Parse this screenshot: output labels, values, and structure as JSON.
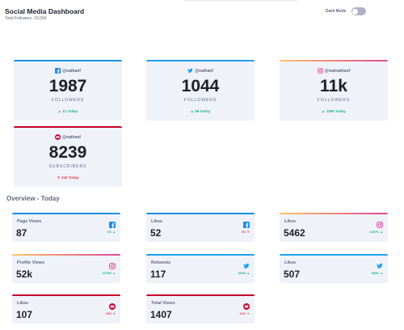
{
  "header": {
    "title": "Social Media Dashboard",
    "total_followers": "Total Followers: 23,004",
    "dark_mode_label": "Dark Mode"
  },
  "colors": {
    "facebook": "#178fe4",
    "twitter": "#1ca0f2",
    "instagram_start": "#fdc468",
    "instagram_end": "#df4996",
    "youtube": "#c4032b",
    "up": "#1eb589",
    "down": "#dc414c",
    "card_bg": "#f0f2fa"
  },
  "cards": [
    {
      "network": "facebook",
      "icon": "facebook-icon",
      "handle": "@nathanf",
      "count": "1987",
      "unit": "FOLLOWERS",
      "delta": "▲ 12 Today",
      "trend": "up"
    },
    {
      "network": "twitter",
      "icon": "twitter-icon",
      "handle": "@nathanf",
      "count": "1044",
      "unit": "FOLLOWERS",
      "delta": "▲ 99 Today",
      "trend": "up"
    },
    {
      "network": "instagram",
      "icon": "instagram-icon",
      "handle": "@realnathanf",
      "count": "11k",
      "unit": "FOLLOWERS",
      "delta": "▲ 1099 Today",
      "trend": "up"
    },
    {
      "network": "youtube",
      "icon": "youtube-icon",
      "handle": "@nathanf",
      "count": "8239",
      "unit": "SUBSCRIBERS",
      "delta": "▼ 144 Today",
      "trend": "down"
    }
  ],
  "overview": {
    "title": "Overview - Today",
    "items": [
      {
        "label": "Page Views",
        "value": "87",
        "pct": "3% ▲",
        "trend": "up",
        "network": "facebook",
        "icon": "facebook-icon"
      },
      {
        "label": "Likes",
        "value": "52",
        "pct": "2% ▼",
        "trend": "down",
        "network": "facebook",
        "icon": "facebook-icon"
      },
      {
        "label": "Likes",
        "value": "5462",
        "pct": "2257% ▲",
        "trend": "up",
        "network": "instagram",
        "icon": "instagram-icon"
      },
      {
        "label": "Profile Views",
        "value": "52k",
        "pct": "1375% ▲",
        "trend": "up",
        "network": "instagram",
        "icon": "instagram-icon"
      },
      {
        "label": "Retweets",
        "value": "117",
        "pct": "303% ▲",
        "trend": "up",
        "network": "twitter",
        "icon": "twitter-icon"
      },
      {
        "label": "Likes",
        "value": "507",
        "pct": "553% ▲",
        "trend": "up",
        "network": "twitter",
        "icon": "twitter-icon"
      },
      {
        "label": "Likes",
        "value": "107",
        "pct": "19% ▼",
        "trend": "down",
        "network": "youtube",
        "icon": "youtube-icon"
      },
      {
        "label": "Total Views",
        "value": "1407",
        "pct": "12% ▼",
        "trend": "down",
        "network": "youtube",
        "icon": "youtube-icon"
      }
    ]
  }
}
